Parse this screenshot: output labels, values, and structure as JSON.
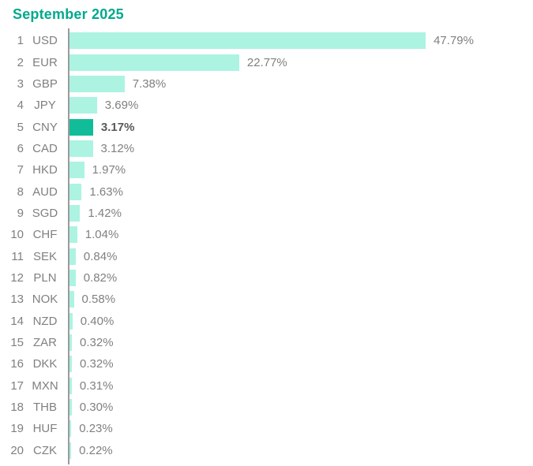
{
  "title": "September 2025",
  "colors": {
    "title": "#00A98C",
    "bar": "#ACF3E2",
    "bar_highlight": "#10BD98",
    "text": "#808080",
    "value_highlight": "#595959",
    "axis": "#9B9B9B",
    "background": "#FFFFFF"
  },
  "chart_data": {
    "type": "bar",
    "orientation": "horizontal",
    "title": "September 2025",
    "xlabel": "",
    "ylabel": "",
    "xlim": [
      0,
      50
    ],
    "grid": false,
    "legend": false,
    "ranks": [
      1,
      2,
      3,
      4,
      5,
      6,
      7,
      8,
      9,
      10,
      11,
      12,
      13,
      14,
      15,
      16,
      17,
      18,
      19,
      20
    ],
    "categories": [
      "USD",
      "EUR",
      "GBP",
      "JPY",
      "CNY",
      "CAD",
      "HKD",
      "AUD",
      "SGD",
      "CHF",
      "SEK",
      "PLN",
      "NOK",
      "NZD",
      "ZAR",
      "DKK",
      "MXN",
      "THB",
      "HUF",
      "CZK"
    ],
    "values": [
      47.79,
      22.77,
      7.38,
      3.69,
      3.17,
      3.12,
      1.97,
      1.63,
      1.42,
      1.04,
      0.84,
      0.82,
      0.58,
      0.4,
      0.32,
      0.32,
      0.31,
      0.3,
      0.23,
      0.22
    ],
    "value_labels": [
      "47.79%",
      "22.77%",
      "7.38%",
      "3.69%",
      "3.17%",
      "3.12%",
      "1.97%",
      "1.63%",
      "1.42%",
      "1.04%",
      "0.84%",
      "0.82%",
      "0.58%",
      "0.40%",
      "0.32%",
      "0.32%",
      "0.31%",
      "0.30%",
      "0.23%",
      "0.22%"
    ],
    "highlight_category": "CNY",
    "highlight_index": 4
  }
}
